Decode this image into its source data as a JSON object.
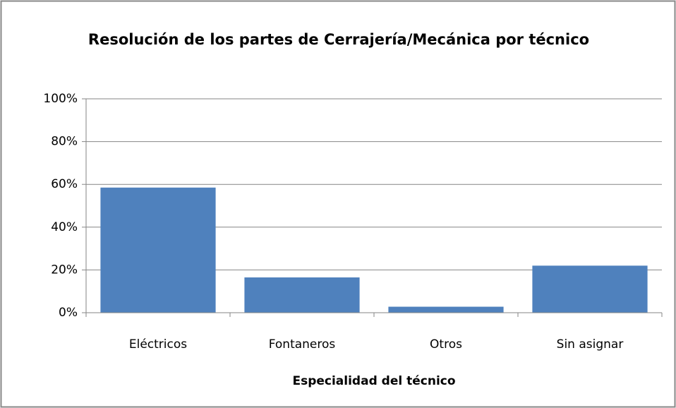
{
  "chart_data": {
    "type": "bar",
    "title": "Resolución de los partes de Cerrajería/Mecánica por técnico",
    "x_label": "Especialidad del técnico",
    "categories": [
      "Eléctricos",
      "Fontaneros",
      "Otros",
      "Sin asignar"
    ],
    "values": [
      58.5,
      16.5,
      2.8,
      22
    ],
    "color": "#4f81bd",
    "ylim": [
      0,
      100
    ],
    "yticks": [
      {
        "value": 0,
        "label": "0%"
      },
      {
        "value": 20,
        "label": "20%"
      },
      {
        "value": 40,
        "label": "40%"
      },
      {
        "value": 60,
        "label": "60%"
      },
      {
        "value": 80,
        "label": "80%"
      },
      {
        "value": 100,
        "label": "100%"
      }
    ],
    "grid": true
  }
}
